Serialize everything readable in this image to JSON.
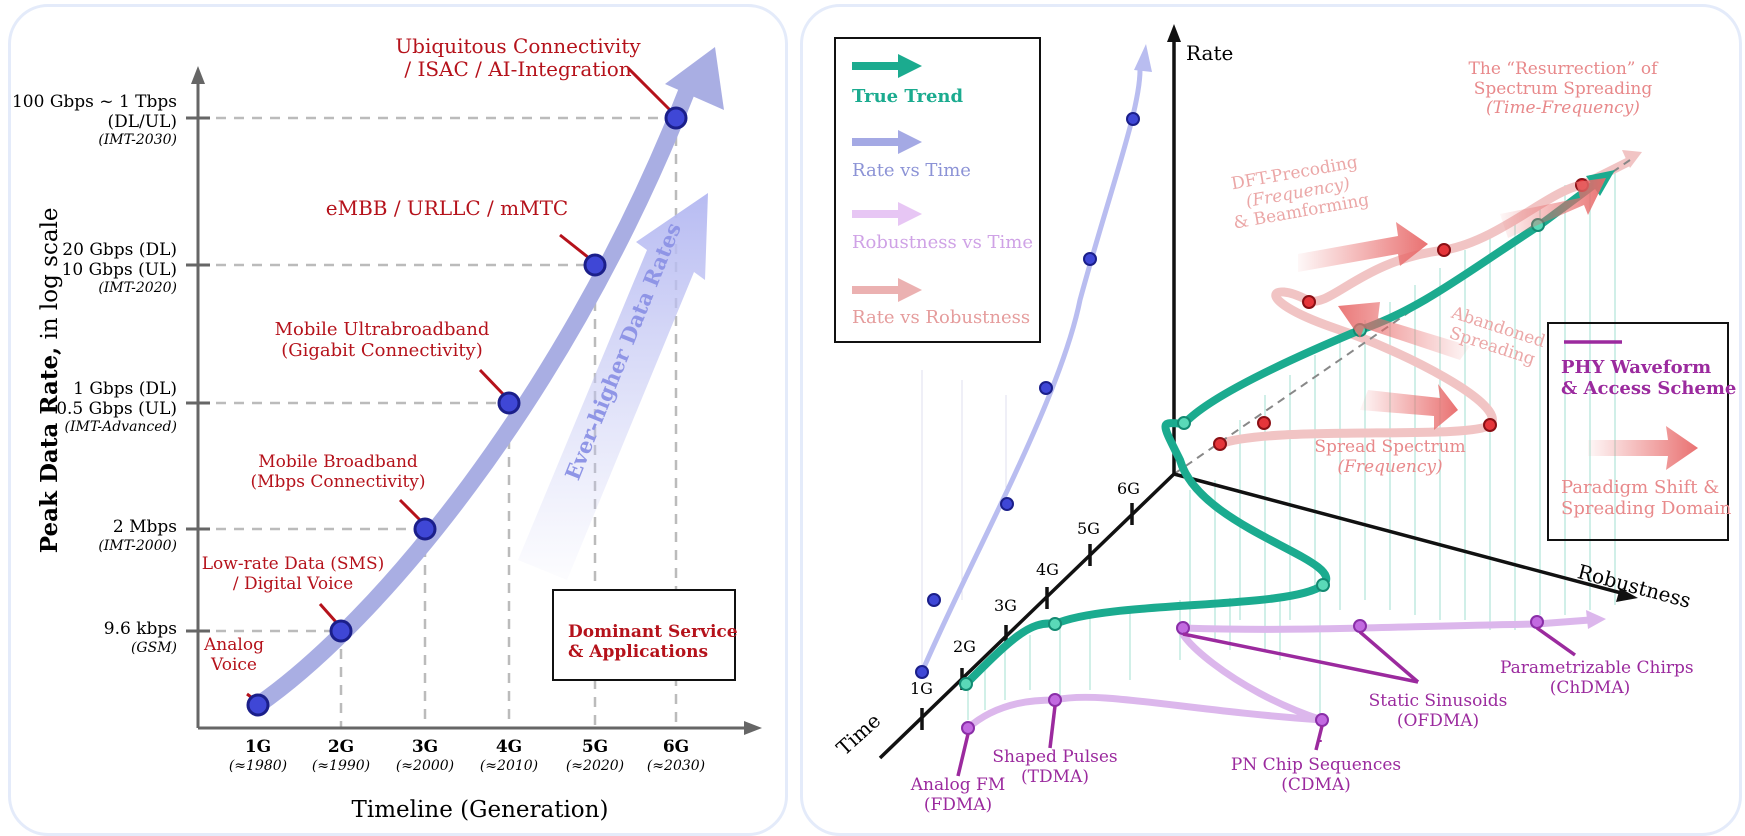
{
  "left": {
    "y_axis_title": {
      "bold": "Peak Data Rate,",
      "rest": " in log scale"
    },
    "x_axis_title": "Timeline (Generation)",
    "y_ticks": [
      {
        "lines": [
          "100 Gbps ~ 1 Tbps",
          "(DL/UL)"
        ],
        "note": "(IMT-2030)"
      },
      {
        "lines": [
          "20 Gbps (DL)",
          "10 Gbps (UL)"
        ],
        "note": "(IMT-2020)"
      },
      {
        "lines": [
          "1 Gbps (DL)",
          "0.5 Gbps (UL)"
        ],
        "note": "(IMT-Advanced)"
      },
      {
        "lines": [
          "2 Mbps"
        ],
        "note": "(IMT-2000)"
      },
      {
        "lines": [
          "9.6 kbps"
        ],
        "note": "(GSM)"
      }
    ],
    "x_ticks": [
      {
        "gen": "1G",
        "year": "(≈1980)"
      },
      {
        "gen": "2G",
        "year": "(≈1990)"
      },
      {
        "gen": "3G",
        "year": "(≈2000)"
      },
      {
        "gen": "4G",
        "year": "(≈2010)"
      },
      {
        "gen": "5G",
        "year": "(≈2020)"
      },
      {
        "gen": "6G",
        "year": "(≈2030)"
      }
    ],
    "services": {
      "s1": [
        "Analog",
        "Voice"
      ],
      "s2": [
        "Low-rate Data (SMS)",
        "/ Digital Voice"
      ],
      "s3": [
        "Mobile Broadband",
        "(Mbps Connectivity)"
      ],
      "s4": [
        "Mobile Ultrabroadband",
        "(Gigabit Connectivity)"
      ],
      "s5": [
        "eMBB / URLLC / mMTC"
      ],
      "s6": [
        "Ubiquitous Connectivity",
        "/ ISAC / AI-Integration"
      ]
    },
    "arrow_label": "Ever-higher Data Rates",
    "legend": [
      "Dominant Service",
      "& Applications"
    ],
    "colors": {
      "curve": "#a9aee3",
      "dot": "#3f47d6",
      "service": "#b5121b"
    }
  },
  "right": {
    "axes": {
      "rate": "Rate",
      "robustness": "Robustness",
      "time": "Time"
    },
    "gens": [
      "1G",
      "2G",
      "3G",
      "4G",
      "5G",
      "6G"
    ],
    "legend1": [
      {
        "label": "True Trend",
        "color": "#1bab8f"
      },
      {
        "label": "Rate vs Time",
        "color": "#8c93d6"
      },
      {
        "label": "Robustness vs Time",
        "color": "#cfa2e6"
      },
      {
        "label": "Rate vs Robustness",
        "color": "#e59c9c"
      }
    ],
    "legend2": {
      "waveform": [
        "PHY Waveform",
        "& Access Scheme"
      ],
      "paradigm": [
        "Paradigm Shift &",
        "Spreading Domain"
      ]
    },
    "waveforms": {
      "w1": [
        "Analog FM",
        "(FDMA)"
      ],
      "w2": [
        "Shaped Pulses",
        "(TDMA)"
      ],
      "w3": [
        "PN Chip Sequences",
        "(CDMA)"
      ],
      "w4": [
        "Static Sinusoids",
        "(OFDMA)"
      ],
      "w5": [
        "Parametrizable Chirps",
        "(ChDMA)"
      ]
    },
    "annotations": {
      "resurrection": [
        "The “Resurrection” of",
        "Spectrum Spreading",
        "(Time-Frequency)"
      ],
      "dft": [
        "DFT-Precoding",
        "(Frequency)",
        "& Beamforming"
      ],
      "abandoned": [
        "Abandoned",
        "Spreading"
      ],
      "spread": [
        "Spread Spectrum",
        "(Frequency)"
      ]
    }
  }
}
